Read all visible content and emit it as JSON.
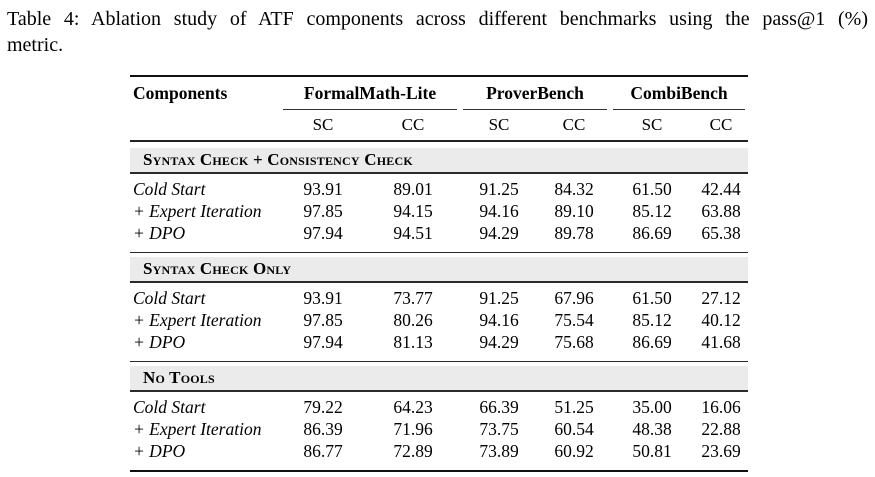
{
  "caption": {
    "line1": "Table 4: Ablation study of ATF components across different benchmarks using the pass@1 (%)",
    "line2": "metric."
  },
  "table": {
    "components_label": "Components",
    "groups": [
      {
        "label": "FormalMath-Lite"
      },
      {
        "label": "ProverBench"
      },
      {
        "label": "CombiBench"
      }
    ],
    "subheaders": [
      "SC",
      "CC",
      "SC",
      "CC",
      "SC",
      "CC"
    ],
    "sections": [
      {
        "title": "Syntax Check + Consistency Check",
        "rows": [
          {
            "label": "Cold Start",
            "values": [
              "93.91",
              "89.01",
              "91.25",
              "84.32",
              "61.50",
              "42.44"
            ]
          },
          {
            "label": "+ Expert Iteration",
            "values": [
              "97.85",
              "94.15",
              "94.16",
              "89.10",
              "85.12",
              "63.88"
            ]
          },
          {
            "label": "+ DPO",
            "values": [
              "97.94",
              "94.51",
              "94.29",
              "89.78",
              "86.69",
              "65.38"
            ]
          }
        ]
      },
      {
        "title": "Syntax Check Only",
        "rows": [
          {
            "label": "Cold Start",
            "values": [
              "93.91",
              "73.77",
              "91.25",
              "67.96",
              "61.50",
              "27.12"
            ]
          },
          {
            "label": "+ Expert Iteration",
            "values": [
              "97.85",
              "80.26",
              "94.16",
              "75.54",
              "85.12",
              "40.12"
            ]
          },
          {
            "label": "+ DPO",
            "values": [
              "97.94",
              "81.13",
              "94.29",
              "75.68",
              "86.69",
              "41.68"
            ]
          }
        ]
      },
      {
        "title": "No Tools",
        "rows": [
          {
            "label": "Cold Start",
            "values": [
              "79.22",
              "64.23",
              "66.39",
              "51.25",
              "35.00",
              "16.06"
            ]
          },
          {
            "label": "+ Expert Iteration",
            "values": [
              "86.39",
              "71.96",
              "73.75",
              "60.54",
              "48.38",
              "22.88"
            ]
          },
          {
            "label": "+ DPO",
            "values": [
              "86.77",
              "72.89",
              "73.89",
              "60.92",
              "50.81",
              "23.69"
            ]
          }
        ]
      }
    ]
  },
  "colors": {
    "section_band": "#ebebeb",
    "rule": "#111111",
    "text": "#000000",
    "background": "#ffffff"
  }
}
